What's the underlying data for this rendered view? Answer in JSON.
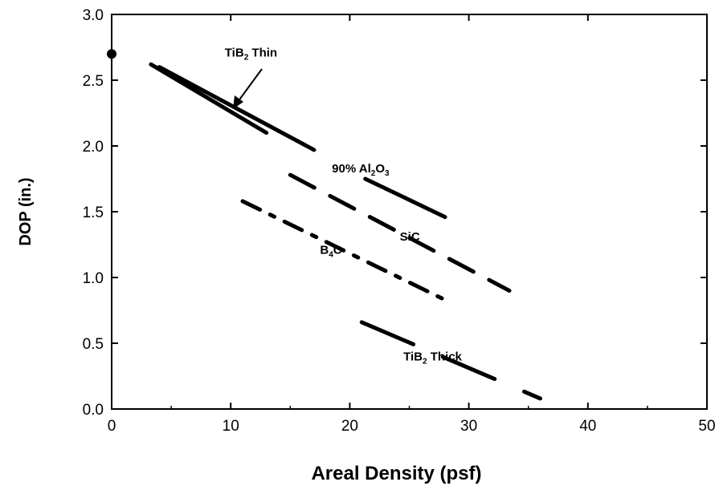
{
  "chart_data": {
    "type": "line",
    "title": "",
    "xlabel": "Areal Density (psf)",
    "ylabel": "DOP  (in.)",
    "xlim": [
      0,
      50
    ],
    "ylim": [
      0,
      3.0
    ],
    "x_ticks": [
      "0",
      "10",
      "20",
      "30",
      "40",
      "50"
    ],
    "y_ticks": [
      "0.0",
      "0.5",
      "1.0",
      "1.5",
      "2.0",
      "2.5",
      "3.0"
    ],
    "grid": false,
    "legend": "none",
    "points": [
      {
        "x": 0,
        "y": 2.7
      }
    ],
    "series": [
      {
        "id": "tib2-thin-a",
        "points": [
          [
            3.3,
            2.62
          ],
          [
            13,
            2.1
          ]
        ],
        "dash": "solid"
      },
      {
        "id": "tib2-thin-b",
        "points": [
          [
            4,
            2.6
          ],
          [
            17,
            1.97
          ]
        ],
        "dash": "solid"
      },
      {
        "id": "al2o3",
        "points": [
          [
            21.3,
            1.75
          ],
          [
            28,
            1.46
          ]
        ],
        "dash": "solid"
      },
      {
        "id": "sic",
        "points": [
          [
            15,
            1.78
          ],
          [
            33.4,
            0.9
          ]
        ],
        "dash": "long-dash"
      },
      {
        "id": "b4c",
        "points": [
          [
            11,
            1.58
          ],
          [
            28,
            0.83
          ]
        ],
        "dash": "dash-dot"
      },
      {
        "id": "tib2-thick",
        "points": [
          [
            21,
            0.66
          ],
          [
            36,
            0.08
          ]
        ],
        "dash": "dash"
      }
    ],
    "annotations": [
      {
        "id": "tib2-thin",
        "text": "TiB",
        "sub": "2",
        "text_after": " Thin",
        "x": 9.5,
        "y": 2.68
      },
      {
        "id": "al2o3",
        "text": "90% Al",
        "sub": "2",
        "text_after": "O",
        "sub2": "3",
        "x": 18.5,
        "y": 1.8
      },
      {
        "id": "sic",
        "text": "SiC",
        "x": 24.2,
        "y": 1.28
      },
      {
        "id": "b4c",
        "text": "B",
        "sub": "4",
        "text_after": "C",
        "x": 17.5,
        "y": 1.18
      },
      {
        "id": "tib2-thick",
        "text": "TiB",
        "sub": "2",
        "text_after": " Thick",
        "x": 24.5,
        "y": 0.37
      }
    ]
  }
}
